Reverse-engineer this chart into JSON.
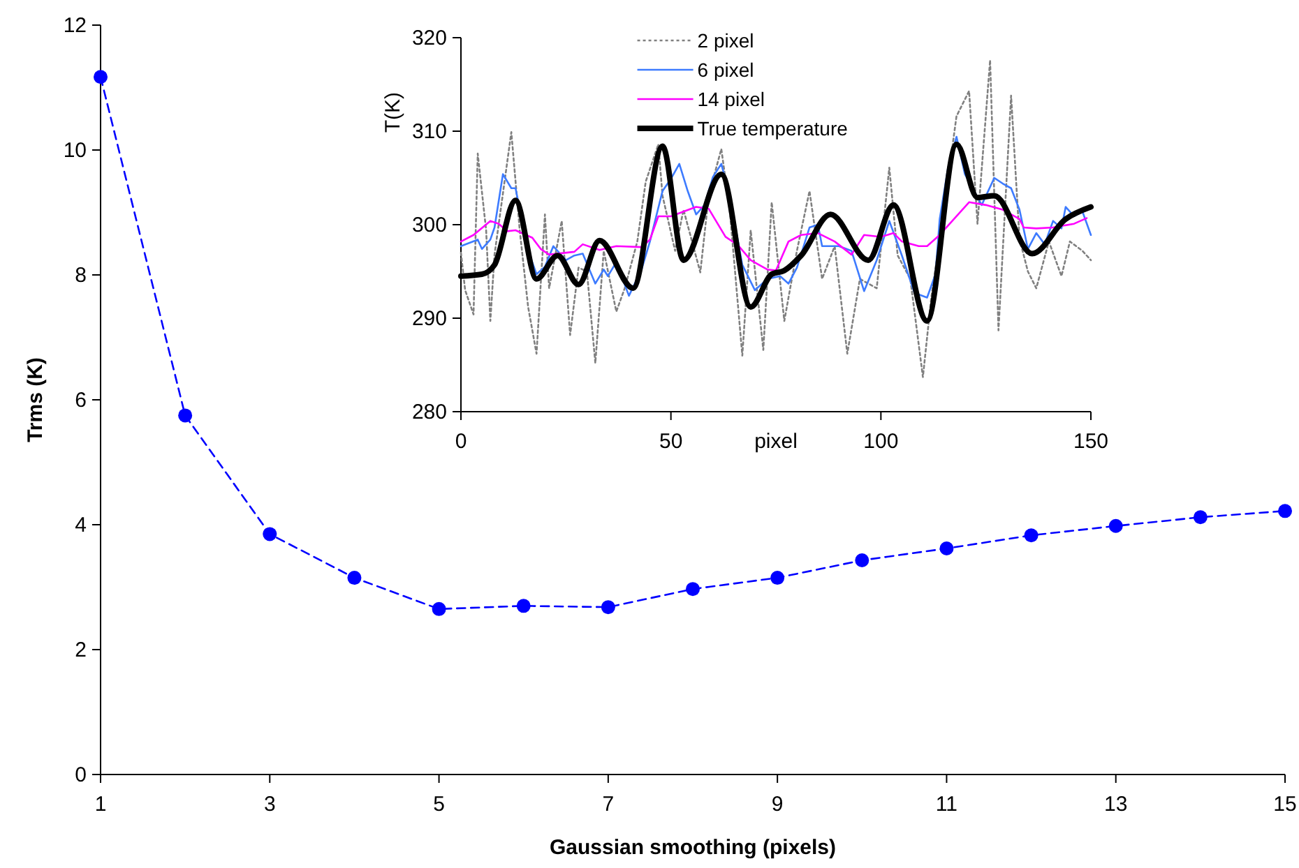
{
  "chart_data": [
    {
      "type": "line",
      "xlabel": "Gaussian smoothing (pixels)",
      "ylabel": "Trms (K)",
      "xlim": [
        1,
        15
      ],
      "xticks": [
        1,
        3,
        5,
        7,
        9,
        11,
        13,
        15
      ],
      "ylim": [
        0,
        12
      ],
      "yticks": [
        0,
        2,
        4,
        6,
        8,
        10,
        12
      ],
      "grid": false,
      "legend": false,
      "marker": "circle",
      "line_style": "dashed",
      "x": [
        1,
        2,
        3,
        4,
        5,
        6,
        7,
        8,
        9,
        10,
        11,
        12,
        13,
        14,
        15
      ],
      "series": [
        {
          "color": "#0000ff",
          "values": [
            11.17,
            5.75,
            3.85,
            3.15,
            2.65,
            2.7,
            2.68,
            2.97,
            3.15,
            3.43,
            3.62,
            3.83,
            3.98,
            4.12,
            4.22
          ]
        }
      ]
    },
    {
      "type": "line",
      "xlabel": "pixel",
      "ylabel": "T(K)",
      "xlim": [
        0,
        150
      ],
      "xticks": [
        0,
        50,
        100,
        150
      ],
      "ylim": [
        280,
        320
      ],
      "yticks": [
        280,
        290,
        300,
        310,
        320
      ],
      "grid": false,
      "legend": "top",
      "marker": "none",
      "series": [
        {
          "name": "2 pixel",
          "color": "#808080",
          "line_style": "dotted",
          "x": [
            0,
            1,
            3,
            4,
            6,
            7,
            8,
            12,
            14,
            16,
            18,
            20,
            21,
            24,
            26,
            28,
            30,
            32,
            34,
            37,
            39,
            42,
            44,
            47,
            48,
            51,
            53,
            57,
            59,
            62,
            64,
            67,
            69,
            72,
            74,
            77,
            80,
            83,
            86,
            89,
            92,
            95,
            99,
            102,
            104,
            107,
            110,
            112,
            115,
            118,
            121,
            123,
            126,
            128,
            131,
            133,
            135,
            137,
            140,
            143,
            145,
            148,
            150
          ],
          "values": [
            297,
            293,
            290.4,
            307.6,
            299.4,
            289.7,
            296.8,
            309.9,
            299.4,
            291.2,
            286.2,
            301.1,
            293.2,
            300.4,
            288.2,
            295.4,
            295,
            285.2,
            297.2,
            290.7,
            293.2,
            298.2,
            304.6,
            308.6,
            303.1,
            297.2,
            301.6,
            294.9,
            303.1,
            308.1,
            301.6,
            286,
            299.4,
            286.6,
            302.4,
            289.7,
            297.2,
            303.6,
            294.2,
            297.7,
            286.2,
            294.2,
            293.2,
            306.1,
            296.7,
            294.2,
            283.7,
            292.2,
            301.6,
            311.6,
            314.3,
            300.1,
            317.6,
            288.7,
            313.8,
            298.5,
            295,
            293.2,
            298.2,
            294.5,
            298.2,
            297.2,
            296.2
          ]
        },
        {
          "name": "6 pixel",
          "color": "#3d7bff",
          "line_style": "solid",
          "x": [
            0,
            4,
            5,
            7,
            8,
            10,
            12,
            13,
            16,
            18,
            20,
            22,
            25,
            27,
            29,
            32,
            34,
            35,
            37,
            40,
            43,
            45,
            48,
            50,
            52,
            54,
            56,
            58,
            60,
            62,
            64,
            67,
            70,
            73,
            76,
            78,
            80,
            83,
            85,
            86,
            90,
            93,
            96,
            99,
            102,
            105,
            108,
            111,
            113,
            114,
            116,
            118,
            120,
            121,
            124,
            127,
            129,
            131,
            133,
            135,
            137,
            139,
            141,
            143,
            144,
            146,
            148,
            150
          ],
          "values": [
            297.7,
            298.4,
            297.4,
            298.4,
            299.7,
            305.4,
            303.9,
            303.9,
            297.2,
            294.7,
            295.5,
            297.7,
            296.2,
            296.7,
            296.9,
            293.7,
            295.2,
            294.5,
            296,
            292.4,
            295.2,
            298.2,
            303.6,
            304.9,
            306.5,
            303.6,
            301.1,
            302.1,
            305.1,
            306.5,
            303.1,
            295.7,
            293,
            294.2,
            294.5,
            293.7,
            295.4,
            299.7,
            300,
            297.7,
            297.7,
            297.2,
            292.9,
            296.2,
            300.4,
            296.7,
            292.7,
            292.2,
            294.7,
            300.6,
            306.1,
            309.4,
            305.4,
            304.6,
            302.1,
            305,
            304.4,
            303.9,
            301.6,
            297.4,
            299.1,
            297.9,
            300.4,
            299.6,
            301.9,
            300.9,
            301.4,
            298.9
          ]
        },
        {
          "name": "14 pixel",
          "color": "#ff00ff",
          "line_style": "solid",
          "x": [
            0,
            3,
            7,
            9,
            11,
            13,
            17,
            19,
            21,
            27,
            29,
            33,
            37,
            43,
            45,
            47,
            50,
            53,
            56,
            59,
            63,
            66,
            69,
            73,
            75,
            78,
            81,
            85,
            89,
            93,
            96,
            100,
            103,
            105,
            109,
            111,
            114,
            118,
            121,
            125,
            129,
            133,
            134,
            137,
            141,
            146,
            149
          ],
          "values": [
            298.2,
            298.9,
            300.4,
            300.1,
            299.3,
            299.4,
            298.6,
            297.4,
            296.8,
            297.1,
            297.9,
            297.3,
            297.7,
            297.6,
            298.4,
            300.9,
            300.9,
            301.4,
            301.9,
            301.7,
            298.7,
            297.8,
            296.2,
            295.2,
            295.1,
            298.2,
            298.9,
            299.1,
            298.2,
            296.8,
            298.9,
            298.7,
            299.1,
            298.2,
            297.7,
            297.7,
            298.9,
            300.9,
            302.4,
            302.1,
            301.6,
            300.6,
            299.7,
            299.6,
            299.7,
            300.1,
            300.7
          ]
        },
        {
          "name": "True temperature",
          "color": "#000000",
          "line_style": "solid",
          "x": [
            0,
            5,
            8,
            13,
            18,
            23,
            28,
            33,
            41,
            48,
            53,
            62,
            69,
            74,
            77,
            81,
            88,
            97,
            103,
            111,
            118,
            123,
            127,
            136,
            144,
            150
          ],
          "values": [
            294.5,
            294.7,
            295.7,
            302.6,
            294.2,
            296.7,
            293.6,
            298.3,
            293.2,
            308.4,
            296.2,
            305.4,
            291.2,
            294.7,
            295.1,
            296.7,
            301.1,
            296.2,
            302.1,
            289.7,
            308.6,
            302.9,
            303.1,
            296.9,
            300.6,
            301.9
          ]
        }
      ]
    }
  ]
}
